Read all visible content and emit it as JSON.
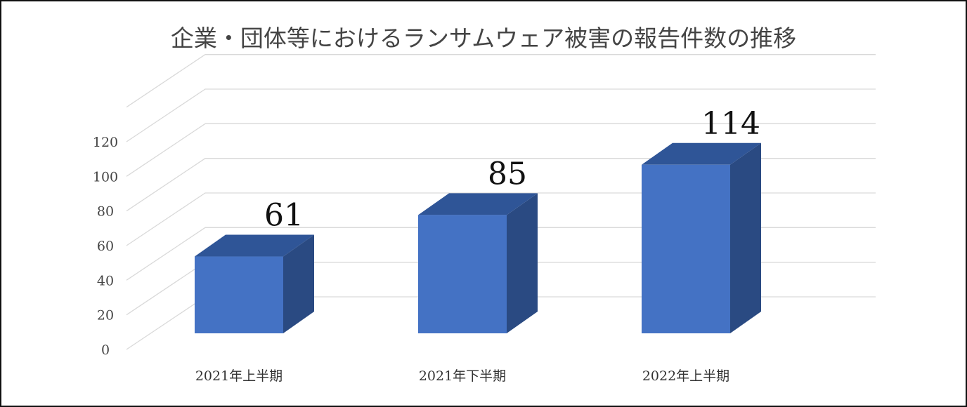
{
  "chart_data": {
    "type": "bar",
    "title": "企業・団体等におけるランサムウェア被害の報告件数の推移",
    "categories": [
      "2021年上半期",
      "2021年下半期",
      "2022年上半期"
    ],
    "values": [
      61,
      85,
      114
    ],
    "data_labels": [
      "61",
      "85",
      "114"
    ],
    "ylim": [
      0,
      140
    ],
    "yticks": [
      "0",
      "20",
      "40",
      "60",
      "80",
      "100",
      "120"
    ],
    "grid": true,
    "style": "3d-column",
    "colors": {
      "front": "#4472c4",
      "side": "#2a4a82",
      "top": "#2f5597",
      "grid": "#d9d9d9"
    }
  }
}
